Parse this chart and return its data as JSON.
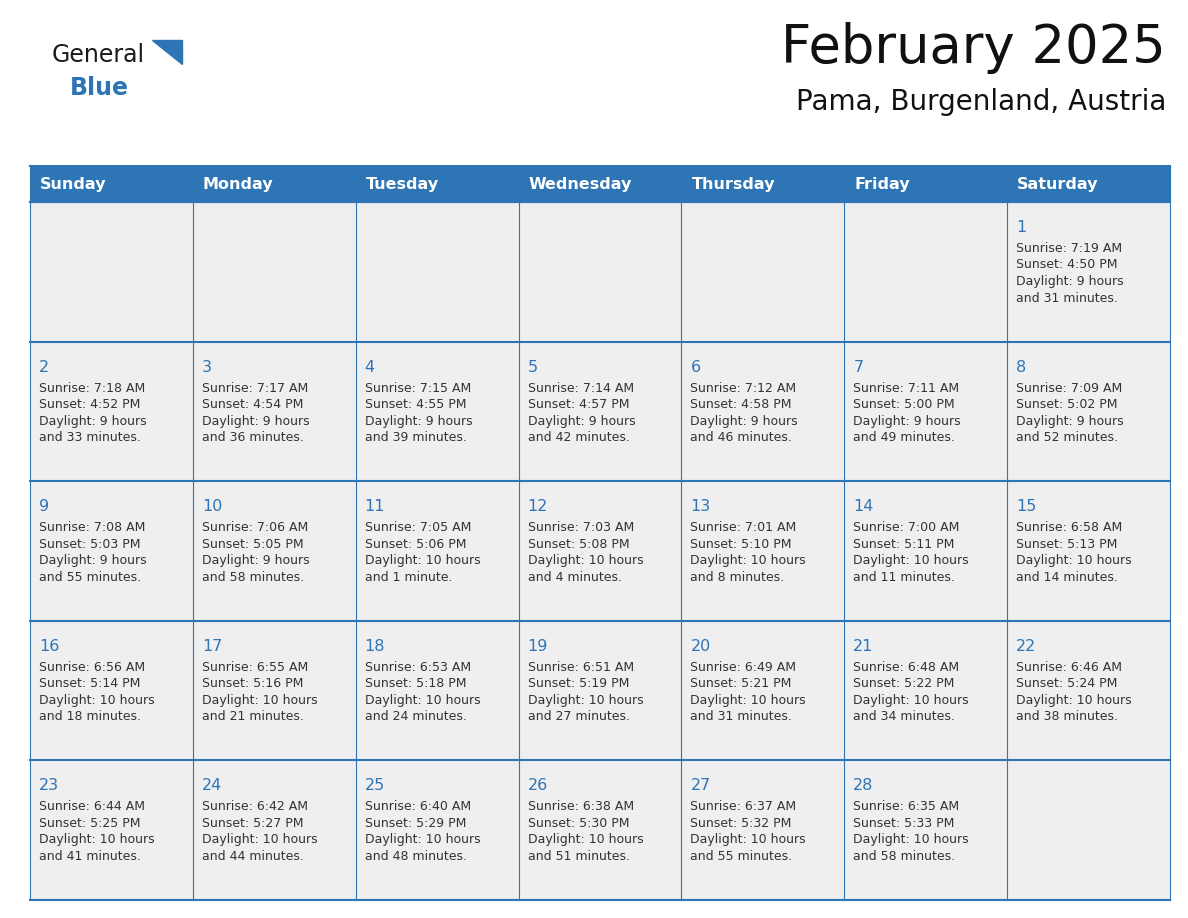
{
  "title": "February 2025",
  "subtitle": "Pama, Burgenland, Austria",
  "header_bg": "#2E75B6",
  "header_text_color": "#FFFFFF",
  "day_names": [
    "Sunday",
    "Monday",
    "Tuesday",
    "Wednesday",
    "Thursday",
    "Friday",
    "Saturday"
  ],
  "cell_bg": "#EFEFEF",
  "cell_text_color": "#333333",
  "day_num_color": "#2E75B6",
  "border_color": "#2E75B6",
  "logo_general_color": "#1A1A1A",
  "logo_blue_color": "#2E75B6",
  "logo_triangle_color": "#2E75B6",
  "days": [
    {
      "date": 1,
      "row": 0,
      "col": 6,
      "sunrise": "7:19 AM",
      "sunset": "4:50 PM",
      "daylight_line1": "Daylight: 9 hours",
      "daylight_line2": "and 31 minutes."
    },
    {
      "date": 2,
      "row": 1,
      "col": 0,
      "sunrise": "7:18 AM",
      "sunset": "4:52 PM",
      "daylight_line1": "Daylight: 9 hours",
      "daylight_line2": "and 33 minutes."
    },
    {
      "date": 3,
      "row": 1,
      "col": 1,
      "sunrise": "7:17 AM",
      "sunset": "4:54 PM",
      "daylight_line1": "Daylight: 9 hours",
      "daylight_line2": "and 36 minutes."
    },
    {
      "date": 4,
      "row": 1,
      "col": 2,
      "sunrise": "7:15 AM",
      "sunset": "4:55 PM",
      "daylight_line1": "Daylight: 9 hours",
      "daylight_line2": "and 39 minutes."
    },
    {
      "date": 5,
      "row": 1,
      "col": 3,
      "sunrise": "7:14 AM",
      "sunset": "4:57 PM",
      "daylight_line1": "Daylight: 9 hours",
      "daylight_line2": "and 42 minutes."
    },
    {
      "date": 6,
      "row": 1,
      "col": 4,
      "sunrise": "7:12 AM",
      "sunset": "4:58 PM",
      "daylight_line1": "Daylight: 9 hours",
      "daylight_line2": "and 46 minutes."
    },
    {
      "date": 7,
      "row": 1,
      "col": 5,
      "sunrise": "7:11 AM",
      "sunset": "5:00 PM",
      "daylight_line1": "Daylight: 9 hours",
      "daylight_line2": "and 49 minutes."
    },
    {
      "date": 8,
      "row": 1,
      "col": 6,
      "sunrise": "7:09 AM",
      "sunset": "5:02 PM",
      "daylight_line1": "Daylight: 9 hours",
      "daylight_line2": "and 52 minutes."
    },
    {
      "date": 9,
      "row": 2,
      "col": 0,
      "sunrise": "7:08 AM",
      "sunset": "5:03 PM",
      "daylight_line1": "Daylight: 9 hours",
      "daylight_line2": "and 55 minutes."
    },
    {
      "date": 10,
      "row": 2,
      "col": 1,
      "sunrise": "7:06 AM",
      "sunset": "5:05 PM",
      "daylight_line1": "Daylight: 9 hours",
      "daylight_line2": "and 58 minutes."
    },
    {
      "date": 11,
      "row": 2,
      "col": 2,
      "sunrise": "7:05 AM",
      "sunset": "5:06 PM",
      "daylight_line1": "Daylight: 10 hours",
      "daylight_line2": "and 1 minute."
    },
    {
      "date": 12,
      "row": 2,
      "col": 3,
      "sunrise": "7:03 AM",
      "sunset": "5:08 PM",
      "daylight_line1": "Daylight: 10 hours",
      "daylight_line2": "and 4 minutes."
    },
    {
      "date": 13,
      "row": 2,
      "col": 4,
      "sunrise": "7:01 AM",
      "sunset": "5:10 PM",
      "daylight_line1": "Daylight: 10 hours",
      "daylight_line2": "and 8 minutes."
    },
    {
      "date": 14,
      "row": 2,
      "col": 5,
      "sunrise": "7:00 AM",
      "sunset": "5:11 PM",
      "daylight_line1": "Daylight: 10 hours",
      "daylight_line2": "and 11 minutes."
    },
    {
      "date": 15,
      "row": 2,
      "col": 6,
      "sunrise": "6:58 AM",
      "sunset": "5:13 PM",
      "daylight_line1": "Daylight: 10 hours",
      "daylight_line2": "and 14 minutes."
    },
    {
      "date": 16,
      "row": 3,
      "col": 0,
      "sunrise": "6:56 AM",
      "sunset": "5:14 PM",
      "daylight_line1": "Daylight: 10 hours",
      "daylight_line2": "and 18 minutes."
    },
    {
      "date": 17,
      "row": 3,
      "col": 1,
      "sunrise": "6:55 AM",
      "sunset": "5:16 PM",
      "daylight_line1": "Daylight: 10 hours",
      "daylight_line2": "and 21 minutes."
    },
    {
      "date": 18,
      "row": 3,
      "col": 2,
      "sunrise": "6:53 AM",
      "sunset": "5:18 PM",
      "daylight_line1": "Daylight: 10 hours",
      "daylight_line2": "and 24 minutes."
    },
    {
      "date": 19,
      "row": 3,
      "col": 3,
      "sunrise": "6:51 AM",
      "sunset": "5:19 PM",
      "daylight_line1": "Daylight: 10 hours",
      "daylight_line2": "and 27 minutes."
    },
    {
      "date": 20,
      "row": 3,
      "col": 4,
      "sunrise": "6:49 AM",
      "sunset": "5:21 PM",
      "daylight_line1": "Daylight: 10 hours",
      "daylight_line2": "and 31 minutes."
    },
    {
      "date": 21,
      "row": 3,
      "col": 5,
      "sunrise": "6:48 AM",
      "sunset": "5:22 PM",
      "daylight_line1": "Daylight: 10 hours",
      "daylight_line2": "and 34 minutes."
    },
    {
      "date": 22,
      "row": 3,
      "col": 6,
      "sunrise": "6:46 AM",
      "sunset": "5:24 PM",
      "daylight_line1": "Daylight: 10 hours",
      "daylight_line2": "and 38 minutes."
    },
    {
      "date": 23,
      "row": 4,
      "col": 0,
      "sunrise": "6:44 AM",
      "sunset": "5:25 PM",
      "daylight_line1": "Daylight: 10 hours",
      "daylight_line2": "and 41 minutes."
    },
    {
      "date": 24,
      "row": 4,
      "col": 1,
      "sunrise": "6:42 AM",
      "sunset": "5:27 PM",
      "daylight_line1": "Daylight: 10 hours",
      "daylight_line2": "and 44 minutes."
    },
    {
      "date": 25,
      "row": 4,
      "col": 2,
      "sunrise": "6:40 AM",
      "sunset": "5:29 PM",
      "daylight_line1": "Daylight: 10 hours",
      "daylight_line2": "and 48 minutes."
    },
    {
      "date": 26,
      "row": 4,
      "col": 3,
      "sunrise": "6:38 AM",
      "sunset": "5:30 PM",
      "daylight_line1": "Daylight: 10 hours",
      "daylight_line2": "and 51 minutes."
    },
    {
      "date": 27,
      "row": 4,
      "col": 4,
      "sunrise": "6:37 AM",
      "sunset": "5:32 PM",
      "daylight_line1": "Daylight: 10 hours",
      "daylight_line2": "and 55 minutes."
    },
    {
      "date": 28,
      "row": 4,
      "col": 5,
      "sunrise": "6:35 AM",
      "sunset": "5:33 PM",
      "daylight_line1": "Daylight: 10 hours",
      "daylight_line2": "and 58 minutes."
    }
  ],
  "num_rows": 5,
  "num_cols": 7
}
